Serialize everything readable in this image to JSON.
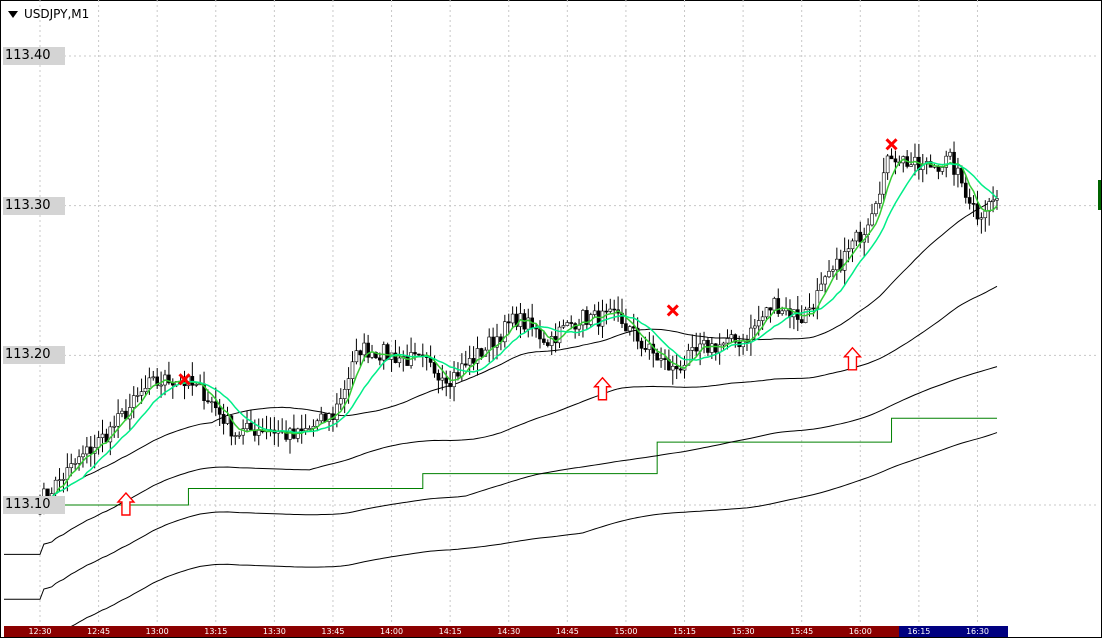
{
  "header": {
    "symbol": "USDJPY,M1"
  },
  "chart_data": {
    "type": "candlestick",
    "title": "USDJPY,M1",
    "y_ticks": [
      {
        "value": 113.4,
        "label": "113.40"
      },
      {
        "value": 113.3,
        "label": "113.30"
      },
      {
        "value": 113.2,
        "label": "113.20"
      },
      {
        "value": 113.1,
        "label": "113.10"
      }
    ],
    "ylim": [
      113.0,
      113.435
    ],
    "x_ticks": [
      "12:30",
      "12:45",
      "13:00",
      "13:15",
      "13:30",
      "13:45",
      "14:00",
      "14:15",
      "14:30",
      "14:45",
      "15:00",
      "15:15",
      "15:30",
      "15:45",
      "16:00",
      "16:15",
      "16:30"
    ],
    "x_range_minutes": [
      0,
      245
    ],
    "close_anchor": [
      [
        0,
        113.103
      ],
      [
        10,
        113.13
      ],
      [
        18,
        113.15
      ],
      [
        28,
        113.18
      ],
      [
        35,
        113.185
      ],
      [
        42,
        113.175
      ],
      [
        50,
        113.148
      ],
      [
        58,
        113.152
      ],
      [
        65,
        113.145
      ],
      [
        75,
        113.16
      ],
      [
        82,
        113.205
      ],
      [
        90,
        113.2
      ],
      [
        98,
        113.195
      ],
      [
        105,
        113.185
      ],
      [
        112,
        113.2
      ],
      [
        122,
        113.225
      ],
      [
        130,
        113.21
      ],
      [
        138,
        113.225
      ],
      [
        148,
        113.225
      ],
      [
        155,
        113.205
      ],
      [
        162,
        113.19
      ],
      [
        170,
        113.205
      ],
      [
        180,
        113.21
      ],
      [
        188,
        113.235
      ],
      [
        195,
        113.225
      ],
      [
        203,
        113.255
      ],
      [
        211,
        113.285
      ],
      [
        218,
        113.335
      ],
      [
        225,
        113.325
      ],
      [
        233,
        113.33
      ],
      [
        240,
        113.295
      ],
      [
        245,
        113.305
      ]
    ],
    "series": [
      {
        "name": "fast MA",
        "color": "#33cc33"
      },
      {
        "name": "slow MA",
        "color": "#00ee88"
      },
      {
        "name": "envelope 1",
        "color": "#000000"
      },
      {
        "name": "envelope 2",
        "color": "#000000"
      },
      {
        "name": "envelope 3",
        "color": "#000000"
      },
      {
        "name": "envelope 4",
        "color": "#000000"
      },
      {
        "name": "step line",
        "color": "#008000",
        "points": [
          [
            0,
            113.1
          ],
          [
            38,
            113.1
          ],
          [
            38,
            113.111
          ],
          [
            98,
            113.111
          ],
          [
            98,
            113.121
          ],
          [
            158,
            113.121
          ],
          [
            158,
            113.142
          ],
          [
            218,
            113.142
          ],
          [
            218,
            113.158
          ],
          [
            245,
            113.158
          ]
        ]
      }
    ],
    "buy_signals": [
      [
        22,
        113.1
      ],
      [
        144,
        113.177
      ],
      [
        208,
        113.197
      ]
    ],
    "sell_signals": [
      [
        37,
        113.184
      ],
      [
        162,
        113.23
      ],
      [
        218,
        113.341
      ]
    ],
    "timeline_colors": {
      "history": "#8b0000",
      "recent": "#000080",
      "recent_from_minute": 220
    },
    "edge_marker_color": "#006400"
  }
}
